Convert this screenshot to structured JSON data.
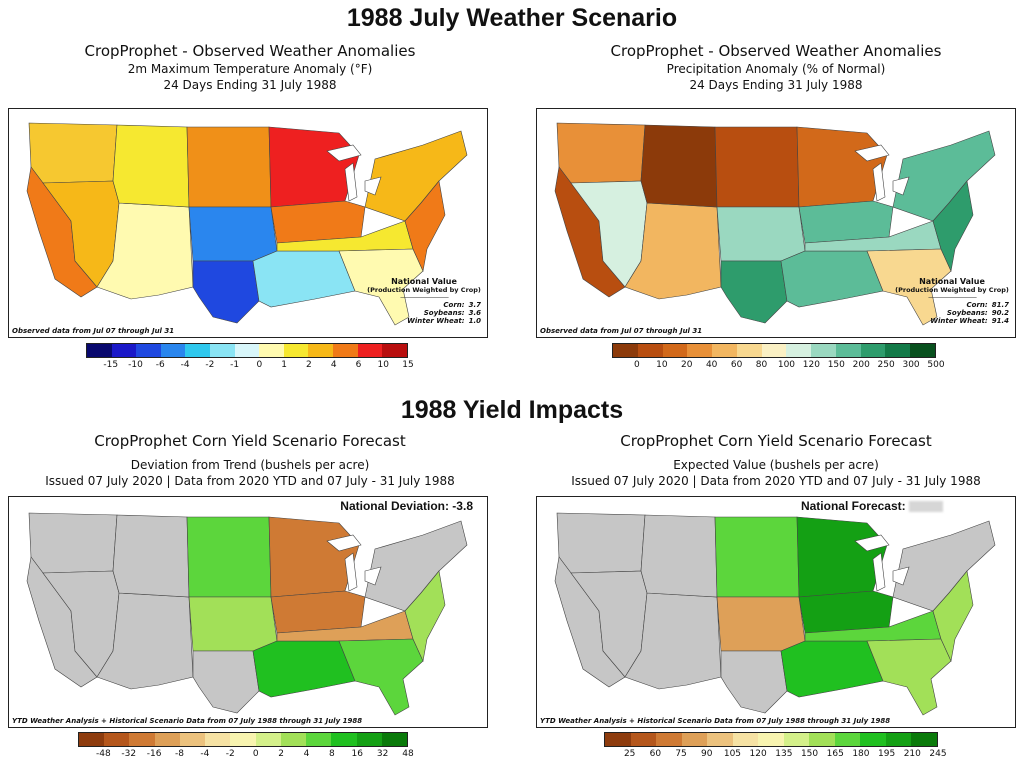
{
  "headings": {
    "weather": "1988 July Weather Scenario",
    "yield": "1988 Yield Impacts"
  },
  "panels": {
    "temp": {
      "title": "CropProphet - Observed Weather Anomalies",
      "sub1": "2m Maximum Temperature Anomaly (°F)",
      "sub2": "24 Days Ending 31 July 1988",
      "footnote": "Observed data from Jul 07 through Jul 31",
      "national": {
        "title": "National Value",
        "sub": "(Production Weighted by Crop)",
        "rule": "-----------------------------------------",
        "rows": [
          {
            "label": "Corn:",
            "value": "3.7"
          },
          {
            "label": "Soybeans:",
            "value": "3.6"
          },
          {
            "label": "Winter Wheat:",
            "value": "1.0"
          }
        ]
      },
      "legend": {
        "labels": [
          "-15",
          "-10",
          "-6",
          "-4",
          "-2",
          "-1",
          "0",
          "1",
          "2",
          "4",
          "6",
          "10",
          "15"
        ],
        "colors": [
          "#08086e",
          "#1a18c8",
          "#1f48e0",
          "#2a86ee",
          "#2fc8ee",
          "#8ae4f4",
          "#d8f6fa",
          "#fffab0",
          "#f6e830",
          "#f6b818",
          "#f07a18",
          "#ee2020",
          "#b80e0e"
        ]
      }
    },
    "precip": {
      "title": "CropProphet - Observed Weather Anomalies",
      "sub1": "Precipitation Anomaly (% of Normal)",
      "sub2": "24 Days Ending 31 July 1988",
      "footnote": "Observed data from Jul 07 through Jul 31",
      "national": {
        "title": "National Value",
        "sub": "(Production Weighted by Crop)",
        "rule": "-----------------------------------------",
        "rows": [
          {
            "label": "Corn:",
            "value": "81.7"
          },
          {
            "label": "Soybeans:",
            "value": "90.2"
          },
          {
            "label": "Winter Wheat:",
            "value": "91.4"
          }
        ]
      },
      "legend": {
        "labels": [
          "0",
          "10",
          "20",
          "40",
          "60",
          "80",
          "100",
          "120",
          "150",
          "200",
          "250",
          "300",
          "500"
        ],
        "colors": [
          "#8c3a0a",
          "#b84e10",
          "#d2691a",
          "#e89038",
          "#f2b660",
          "#f8d890",
          "#faf0c4",
          "#d6f0e0",
          "#9ad8c0",
          "#5cbc98",
          "#2e9c6c",
          "#137a48",
          "#08501e"
        ]
      }
    },
    "yield_dev": {
      "title": "CropProphet Corn Yield Scenario Forecast",
      "sub1": "Deviation from Trend (bushels per acre)",
      "sub2": "Issued 07 July 2020 | Data from 2020 YTD and 07 July - 31 July 1988",
      "national_label": "National Deviation: -3.8",
      "footnote": "YTD Weather Analysis + Historical Scenario Data from 07 July 1988 through 31 July 1988",
      "legend": {
        "labels": [
          "-48",
          "-32",
          "-16",
          "-8",
          "-4",
          "-2",
          "0",
          "2",
          "4",
          "8",
          "16",
          "32",
          "48"
        ],
        "colors": [
          "#8e3c0e",
          "#b5571c",
          "#cf7a34",
          "#dea058",
          "#ecc27e",
          "#f6e2a4",
          "#f8f4b0",
          "#d4f08a",
          "#a2e058",
          "#5cd63c",
          "#20c020",
          "#14a014",
          "#0a7a0a"
        ]
      }
    },
    "yield_exp": {
      "title": "CropProphet Corn Yield Scenario Forecast",
      "sub1": "Expected Value (bushels per acre)",
      "sub2": "Issued 07 July 2020 | Data from 2020 YTD and 07 July - 31 July 1988",
      "national_label": "National Forecast:",
      "footnote": "YTD Weather Analysis + Historical Scenario Data from 07 July 1988 through 31 July 1988",
      "legend": {
        "labels": [
          "25",
          "60",
          "75",
          "90",
          "105",
          "120",
          "135",
          "150",
          "165",
          "180",
          "195",
          "210",
          "245"
        ],
        "colors": [
          "#8e3c0e",
          "#b5571c",
          "#cf7a34",
          "#dea058",
          "#ecc27e",
          "#f6e2a4",
          "#f8f4b0",
          "#d4f08a",
          "#a2e058",
          "#5cd63c",
          "#20c020",
          "#14a014",
          "#0a7a0a"
        ]
      }
    }
  },
  "map_regions": {
    "temp": [
      {
        "region": "pacific-northwest",
        "color": "#f6c830"
      },
      {
        "region": "california-coast",
        "color": "#f07a18"
      },
      {
        "region": "great-basin",
        "color": "#f6b818"
      },
      {
        "region": "southwest",
        "color": "#fffab0"
      },
      {
        "region": "northern-rockies",
        "color": "#f6e830"
      },
      {
        "region": "northern-plains",
        "color": "#f09018"
      },
      {
        "region": "upper-midwest",
        "color": "#ee2020"
      },
      {
        "region": "southern-plains",
        "color": "#2a86ee"
      },
      {
        "region": "west-texas",
        "color": "#1f48e0"
      },
      {
        "region": "gulf-coast",
        "color": "#8ae4f4"
      },
      {
        "region": "midwest",
        "color": "#f07a18"
      },
      {
        "region": "ohio-valley",
        "color": "#f6e830"
      },
      {
        "region": "southeast",
        "color": "#fffab0"
      },
      {
        "region": "northeast",
        "color": "#f6b818"
      },
      {
        "region": "mid-atlantic",
        "color": "#f07a18"
      }
    ],
    "precip": [
      {
        "region": "pacific-northwest",
        "color": "#e89038"
      },
      {
        "region": "california-coast",
        "color": "#b84e10"
      },
      {
        "region": "great-basin",
        "color": "#d6f0e0"
      },
      {
        "region": "southwest",
        "color": "#f2b660"
      },
      {
        "region": "northern-rockies",
        "color": "#8c3a0a"
      },
      {
        "region": "northern-plains",
        "color": "#b84e10"
      },
      {
        "region": "upper-midwest",
        "color": "#d2691a"
      },
      {
        "region": "southern-plains",
        "color": "#9ad8c0"
      },
      {
        "region": "west-texas",
        "color": "#2e9c6c"
      },
      {
        "region": "gulf-coast",
        "color": "#5cbc98"
      },
      {
        "region": "midwest",
        "color": "#5cbc98"
      },
      {
        "region": "ohio-valley",
        "color": "#9ad8c0"
      },
      {
        "region": "southeast",
        "color": "#f8d890"
      },
      {
        "region": "northeast",
        "color": "#5cbc98"
      },
      {
        "region": "mid-atlantic",
        "color": "#2e9c6c"
      }
    ],
    "yield_dev": [
      {
        "region": "pacific-northwest",
        "color": "#c6c6c6"
      },
      {
        "region": "california-coast",
        "color": "#c6c6c6"
      },
      {
        "region": "great-basin",
        "color": "#c6c6c6"
      },
      {
        "region": "southwest",
        "color": "#c6c6c6"
      },
      {
        "region": "northern-rockies",
        "color": "#c6c6c6"
      },
      {
        "region": "northern-plains",
        "color": "#5cd63c"
      },
      {
        "region": "upper-midwest",
        "color": "#cf7a34"
      },
      {
        "region": "southern-plains",
        "color": "#a2e058"
      },
      {
        "region": "west-texas",
        "color": "#c6c6c6"
      },
      {
        "region": "gulf-coast",
        "color": "#20c020"
      },
      {
        "region": "midwest",
        "color": "#cf7a34"
      },
      {
        "region": "ohio-valley",
        "color": "#dea058"
      },
      {
        "region": "southeast",
        "color": "#5cd63c"
      },
      {
        "region": "northeast",
        "color": "#c6c6c6"
      },
      {
        "region": "mid-atlantic",
        "color": "#a2e058"
      }
    ],
    "yield_exp": [
      {
        "region": "pacific-northwest",
        "color": "#c6c6c6"
      },
      {
        "region": "california-coast",
        "color": "#c6c6c6"
      },
      {
        "region": "great-basin",
        "color": "#c6c6c6"
      },
      {
        "region": "southwest",
        "color": "#c6c6c6"
      },
      {
        "region": "northern-rockies",
        "color": "#c6c6c6"
      },
      {
        "region": "northern-plains",
        "color": "#5cd63c"
      },
      {
        "region": "upper-midwest",
        "color": "#14a014"
      },
      {
        "region": "southern-plains",
        "color": "#dea058"
      },
      {
        "region": "west-texas",
        "color": "#c6c6c6"
      },
      {
        "region": "gulf-coast",
        "color": "#20c020"
      },
      {
        "region": "midwest",
        "color": "#14a014"
      },
      {
        "region": "ohio-valley",
        "color": "#5cd63c"
      },
      {
        "region": "southeast",
        "color": "#a2e058"
      },
      {
        "region": "northeast",
        "color": "#c6c6c6"
      },
      {
        "region": "mid-atlantic",
        "color": "#a2e058"
      }
    ]
  }
}
